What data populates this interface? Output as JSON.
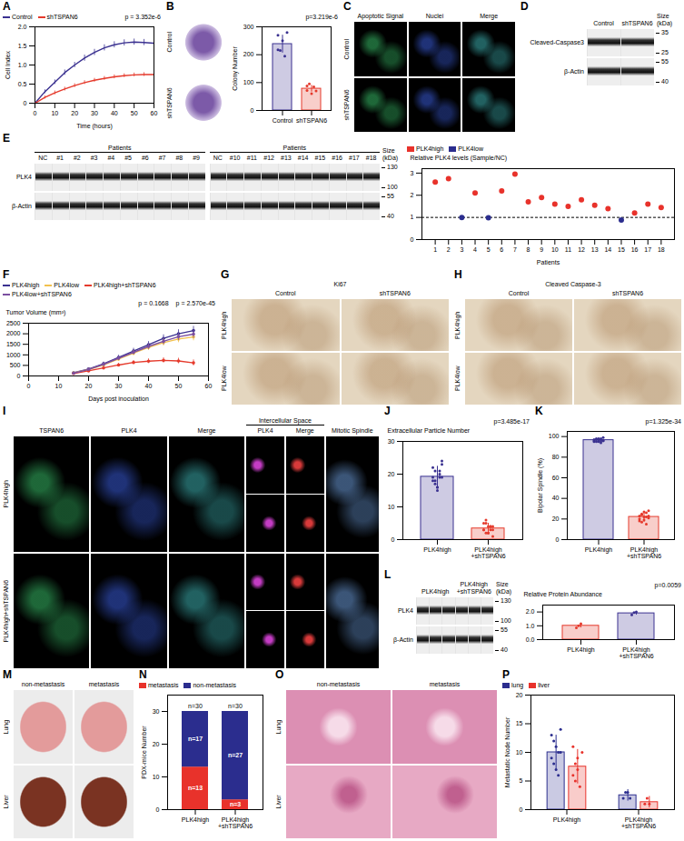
{
  "chart_data": [
    {
      "panel": "A",
      "type": "line",
      "x_label": "Time (hours)",
      "y_label": "Cell Index",
      "x": [
        0,
        5,
        10,
        15,
        20,
        25,
        30,
        35,
        40,
        45,
        50,
        55,
        60
      ],
      "series": [
        {
          "name": "Control",
          "color": "#3a3190",
          "values": [
            0,
            0.3,
            0.55,
            0.8,
            1.0,
            1.18,
            1.33,
            1.45,
            1.53,
            1.58,
            1.6,
            1.59,
            1.57
          ],
          "errors": [
            0,
            0.05,
            0.06,
            0.07,
            0.07,
            0.08,
            0.08,
            0.08,
            0.08,
            0.08,
            0.08,
            0.08,
            0.08
          ]
        },
        {
          "name": "shTSPAN6",
          "color": "#e53a2c",
          "values": [
            0,
            0.15,
            0.27,
            0.37,
            0.46,
            0.54,
            0.6,
            0.65,
            0.69,
            0.72,
            0.74,
            0.75,
            0.75
          ],
          "errors": [
            0,
            0.04,
            0.05,
            0.05,
            0.05,
            0.05,
            0.05,
            0.05,
            0.05,
            0.05,
            0.05,
            0.05,
            0.05
          ]
        }
      ],
      "xlim": [
        0,
        60
      ],
      "xticks": [
        0,
        10,
        20,
        30,
        40,
        50,
        60
      ],
      "ylim": [
        0,
        2
      ],
      "yticks": [
        0,
        0.5,
        {
          "value": 1,
          "label": "1.0"
        },
        1.5,
        {
          "value": 2,
          "label": "2.0"
        }
      ],
      "legend": "top",
      "annotations": [
        "p = 3.352e-6"
      ]
    },
    {
      "panel": "B",
      "type": "bar",
      "y_label": "Colony Number",
      "categories": [
        "Control",
        "shTSPAN6"
      ],
      "values": [
        238,
        78
      ],
      "errors": [
        32,
        12
      ],
      "points": [
        [
          270,
          215,
          250,
          195,
          280,
          218
        ],
        [
          72,
          95,
          60,
          85,
          70,
          88
        ]
      ],
      "colors": [
        "#3a3190",
        "#e53a2c"
      ],
      "ylim": [
        0,
        300
      ],
      "yticks": [
        0,
        100,
        200,
        300
      ],
      "annotations": [
        "p=3.219e-6"
      ]
    },
    {
      "panel": "E",
      "type": "scatter",
      "x_label": "Patients",
      "y_label": "Relative PLK4 levels (Sample/NC)",
      "series": [
        {
          "name": "PLK4high",
          "color": "#e8322b",
          "x": [
            1,
            2,
            4,
            6,
            7,
            8,
            9,
            10,
            11,
            12,
            13,
            14,
            16,
            17,
            18
          ],
          "values": [
            2.6,
            2.75,
            2.1,
            2.2,
            2.95,
            1.7,
            1.9,
            1.6,
            1.5,
            1.8,
            1.55,
            1.4,
            1.2,
            1.6,
            1.45
          ]
        },
        {
          "name": "PLK4low",
          "color": "#2b2d8e",
          "x": [
            3,
            5,
            15
          ],
          "values": [
            1.0,
            0.98,
            0.88
          ]
        }
      ],
      "xlim": [
        0,
        19
      ],
      "xticks": [
        1,
        2,
        3,
        4,
        5,
        6,
        7,
        8,
        9,
        10,
        11,
        12,
        13,
        14,
        15,
        16,
        17,
        18
      ],
      "ylim": [
        0,
        3.2
      ],
      "yticks": [
        0,
        1,
        2,
        3
      ],
      "reference_line": 1,
      "legend": "top"
    },
    {
      "panel": "F",
      "type": "line",
      "x_label": "Days post inoculation",
      "y_label": "Tumor Volume (mm³)",
      "marker": "circle",
      "x": [
        15,
        20,
        25,
        30,
        35,
        40,
        45,
        50,
        55
      ],
      "series": [
        {
          "name": "PLK4high",
          "color": "#3a3190",
          "values": [
            150,
            330,
            580,
            880,
            1180,
            1480,
            1780,
            2000,
            2150
          ],
          "errors": [
            40,
            60,
            80,
            100,
            130,
            150,
            170,
            190,
            200
          ]
        },
        {
          "name": "PLK4low",
          "color": "#f2c14e",
          "values": [
            140,
            300,
            520,
            800,
            1080,
            1350,
            1580,
            1750,
            1850
          ],
          "errors": [
            40,
            60,
            80,
            100,
            120,
            140,
            160,
            170,
            180
          ]
        },
        {
          "name": "PLK4high+shTSPAN6",
          "color": "#e53a2c",
          "values": [
            120,
            240,
            380,
            520,
            640,
            700,
            740,
            710,
            620
          ],
          "errors": [
            30,
            50,
            60,
            80,
            90,
            110,
            120,
            130,
            140
          ]
        },
        {
          "name": "PLK4low+shTSPAN6",
          "color": "#7b4fa0",
          "values": [
            130,
            310,
            550,
            840,
            1120,
            1400,
            1640,
            1860,
            1980
          ],
          "errors": [
            40,
            60,
            80,
            100,
            120,
            140,
            160,
            180,
            190
          ]
        }
      ],
      "xlim": [
        0,
        60
      ],
      "xticks": [
        0,
        10,
        20,
        30,
        40,
        50,
        60
      ],
      "ylim": [
        0,
        2500
      ],
      "yticks": [
        0,
        500,
        1000,
        1500,
        2000,
        2500
      ],
      "legend": "top",
      "annotations": [
        "p = 0.1668",
        "p = 2.570e-45"
      ]
    },
    {
      "panel": "J",
      "type": "bar",
      "y_label": "Extracellular Particle Number",
      "categories": [
        "PLK4high",
        "PLK4high+shTSPAN6"
      ],
      "values": [
        19.2,
        3.4
      ],
      "errors": [
        3.2,
        1.6
      ],
      "points": [
        [
          22,
          18,
          16,
          21,
          24,
          19,
          17,
          15,
          20,
          23,
          18,
          21,
          16,
          19,
          19
        ],
        [
          3,
          5,
          2,
          4,
          1,
          3,
          6,
          2,
          4,
          3,
          5,
          2,
          4,
          3,
          4
        ]
      ],
      "colors": [
        "#3a3190",
        "#e53a2c"
      ],
      "ylim": [
        0,
        30
      ],
      "yticks": [
        0,
        10,
        20,
        30
      ],
      "annotations": [
        "p=3.485e-17"
      ]
    },
    {
      "panel": "K",
      "type": "bar",
      "y_label": "Bipolar Spindle (%)",
      "categories": [
        "PLK4high",
        "PLK4high+shTSPAN6"
      ],
      "values": [
        96.5,
        22
      ],
      "errors": [
        2,
        5
      ],
      "points": [
        [
          95,
          98,
          97,
          94,
          99,
          96,
          97,
          95,
          98,
          96,
          97,
          95,
          98,
          96,
          96
        ],
        [
          18,
          25,
          22,
          15,
          28,
          20,
          24,
          19,
          26,
          21,
          23,
          17,
          27,
          22,
          23
        ]
      ],
      "colors": [
        "#3a3190",
        "#e53a2c"
      ],
      "ylim": [
        0,
        105
      ],
      "yticks": [
        0,
        20,
        40,
        60,
        80,
        100
      ],
      "annotations": [
        "p=1.325e-34"
      ]
    },
    {
      "panel": "L",
      "type": "bar",
      "y_label": "Relative Protein Abundance",
      "categories": [
        "PLK4high",
        "PLK4high+shTSPAN6"
      ],
      "values": [
        1.0,
        1.9
      ],
      "errors": [
        0.15,
        0.12
      ],
      "points": [
        [
          0.85,
          1.0,
          1.15
        ],
        [
          1.8,
          1.95,
          2.0
        ]
      ],
      "colors": [
        "#e53a2c",
        "#3a3190"
      ],
      "ylim": [
        0,
        2.5
      ],
      "yticks": [
        {
          "value": 0,
          "label": "0.0"
        },
        {
          "value": 1,
          "label": "1.0"
        },
        {
          "value": 2,
          "label": "2.0"
        }
      ],
      "annotations": [
        "p=0.0059"
      ]
    },
    {
      "panel": "N",
      "type": "bar",
      "stacked": true,
      "data_labels": true,
      "y_label": "PDX-mice Number",
      "categories": [
        "PLK4high",
        "PLK4high+shTSPAN6"
      ],
      "series": [
        {
          "name": "metastasis",
          "color": "#e8322b",
          "values": [
            13,
            3
          ],
          "value_labels": [
            "n=13",
            "n=3"
          ]
        },
        {
          "name": "non-metastasis",
          "color": "#2b2d8e",
          "values": [
            17,
            27
          ],
          "value_labels": [
            "n=17",
            "n=27"
          ]
        }
      ],
      "total_labels": [
        "n=30",
        "n=30"
      ],
      "ylim": [
        0,
        35
      ],
      "yticks": [
        0,
        10,
        20,
        30
      ],
      "legend": "top"
    },
    {
      "panel": "P",
      "type": "bar",
      "y_label": "Metastatic Node Number",
      "categories": [
        "PLK4high",
        "PLK4high+shTSPAN6"
      ],
      "series": [
        {
          "name": "lung",
          "color": "#2b2d8e",
          "values": [
            10,
            2.5
          ],
          "errors": [
            3,
            1
          ],
          "points": [
            [
              13,
              8,
              11,
              6,
              14,
              9,
              12,
              7,
              10,
              10
            ],
            [
              2,
              3,
              3,
              2
            ]
          ]
        },
        {
          "name": "liver",
          "color": "#e8322b",
          "values": [
            7.5,
            1.3
          ],
          "errors": [
            3,
            1
          ],
          "points": [
            [
              11,
              5,
              9,
              4,
              10,
              6,
              8,
              7
            ],
            [
              1,
              2,
              1
            ]
          ]
        }
      ],
      "ylim": [
        0,
        20
      ],
      "yticks": [
        0,
        5,
        10,
        15,
        20
      ],
      "legend": "top"
    }
  ],
  "image_panels": [
    {
      "panel": "B",
      "kind": "colony",
      "rows": [
        "Control",
        "shTSPAN6"
      ]
    },
    {
      "panel": "C",
      "kind": "fluorescence",
      "columns": [
        "Apoptotic Signal",
        "Nuclei",
        "Merge"
      ],
      "rows": [
        "Control",
        "shTSPAN6"
      ]
    },
    {
      "panel": "D",
      "kind": "blot",
      "blocks": [
        {
          "lanes": [
            "Control",
            "shTSPAN6"
          ]
        }
      ],
      "bands": [
        {
          "name": "Cleaved-Caspase3",
          "sizes": [
            35,
            25
          ]
        },
        {
          "name": "β-Actin",
          "sizes": [
            55,
            40
          ]
        }
      ],
      "size_label": "Size (kDa)"
    },
    {
      "panel": "E",
      "kind": "blot",
      "blocks": [
        {
          "header": "Patients",
          "lanes": [
            "NC",
            "#1",
            "#2",
            "#3",
            "#4",
            "#5",
            "#6",
            "#7",
            "#8",
            "#9"
          ]
        },
        {
          "header": "Patients",
          "lanes": [
            "NC",
            "#10",
            "#11",
            "#12",
            "#13",
            "#14",
            "#15",
            "#16",
            "#17",
            "#18"
          ]
        }
      ],
      "bands": [
        {
          "name": "PLK4",
          "sizes": [
            130,
            100
          ]
        },
        {
          "name": "β-Actin",
          "sizes": [
            55,
            40
          ]
        }
      ],
      "size_label": "Size (kDa)"
    },
    {
      "panel": "G",
      "kind": "ihc",
      "title": "Ki67",
      "columns": [
        "Control",
        "shTSPAN6"
      ],
      "rows": [
        "PLK4high",
        "PLK4low"
      ]
    },
    {
      "panel": "H",
      "kind": "ihc",
      "title": "Cleaved Caspase-3",
      "columns": [
        "Control",
        "shTSPAN6"
      ],
      "rows": [
        "PLK4high",
        "PLK4low"
      ]
    },
    {
      "panel": "I",
      "kind": "fluorescence",
      "columns": [
        "TSPAN6",
        "PLK4",
        "Merge"
      ],
      "group": {
        "title": "Intercellular Space",
        "columns": [
          "PLK4",
          "Merge"
        ]
      },
      "extra_column": "Mitotic Spindle",
      "rows": [
        "PLK4high",
        "PLK4high+shTSPAN6"
      ]
    },
    {
      "panel": "L",
      "kind": "blot",
      "blocks": [
        {
          "groups": [
            {
              "label": "PLK4high",
              "lanes": 3
            },
            {
              "label": "PLK4high+shTSPAN6",
              "lanes": 3
            }
          ]
        }
      ],
      "bands": [
        {
          "name": "PLK4",
          "sizes": [
            130,
            100
          ]
        },
        {
          "name": "β-Actin",
          "sizes": [
            55,
            40
          ]
        }
      ],
      "size_label": "Size (kDa)"
    },
    {
      "panel": "M",
      "kind": "photo",
      "columns": [
        "non-metastasis",
        "metastasis"
      ],
      "rows": [
        "Lung",
        "Liver"
      ]
    },
    {
      "panel": "O",
      "kind": "histology",
      "columns": [
        "non-metastasis",
        "metastasis"
      ],
      "rows": [
        "Lung",
        "Liver"
      ]
    }
  ]
}
